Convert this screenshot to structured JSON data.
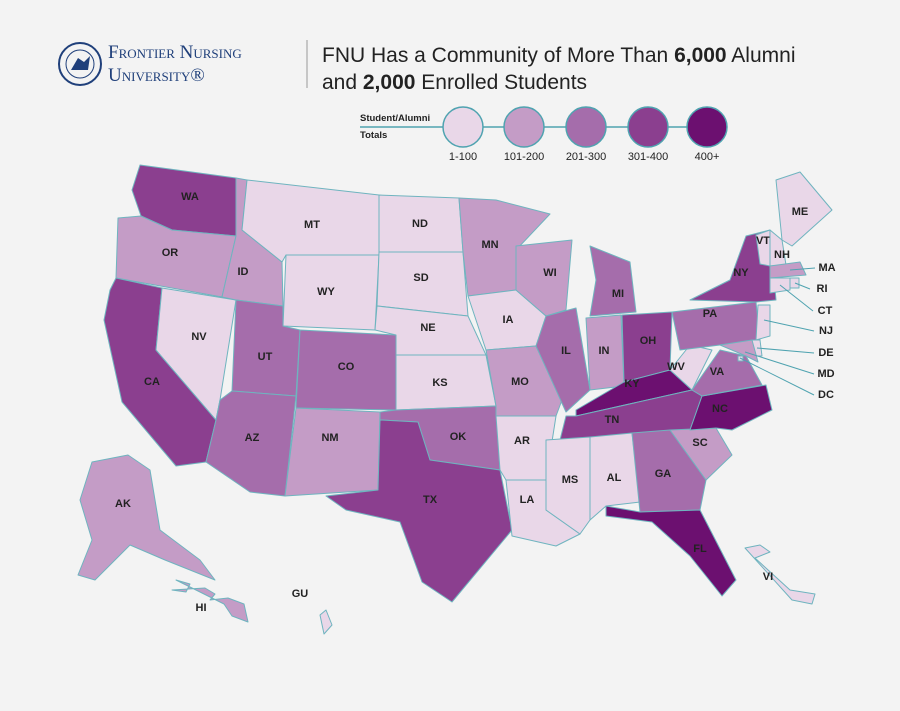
{
  "logo": {
    "line1": "Frontier Nursing",
    "line2": "University®"
  },
  "title": {
    "lines": [
      [
        {
          "text": "FNU Has a Community of More Than ",
          "bold": false
        },
        {
          "text": "6,000",
          "bold": true
        },
        {
          "text": " Alumni",
          "bold": false
        }
      ],
      [
        {
          "text": "and ",
          "bold": false
        },
        {
          "text": "2,000",
          "bold": true
        },
        {
          "text": " Enrolled Students",
          "bold": false
        }
      ]
    ]
  },
  "legend": {
    "title": [
      "Student/Alumni",
      "Totals"
    ],
    "bins": [
      {
        "label": "1-100",
        "color": "#e9d7e8"
      },
      {
        "label": "101-200",
        "color": "#c49cc6"
      },
      {
        "label": "201-300",
        "color": "#a56dab"
      },
      {
        "label": "301-400",
        "color": "#8b3f8f"
      },
      {
        "label": "400+",
        "color": "#6c1070"
      }
    ]
  },
  "states": [
    {
      "label": "WA",
      "color": "#8b3f8f"
    },
    {
      "label": "OR",
      "color": "#c49cc6"
    },
    {
      "label": "CA",
      "color": "#8b3f8f"
    },
    {
      "label": "NV",
      "color": "#e9d7e8"
    },
    {
      "label": "ID",
      "color": "#c49cc6"
    },
    {
      "label": "MT",
      "color": "#e9d7e8"
    },
    {
      "label": "WY",
      "color": "#e9d7e8"
    },
    {
      "label": "UT",
      "color": "#a56dab"
    },
    {
      "label": "AZ",
      "color": "#a56dab"
    },
    {
      "label": "CO",
      "color": "#a56dab"
    },
    {
      "label": "NM",
      "color": "#c49cc6"
    },
    {
      "label": "ND",
      "color": "#e9d7e8"
    },
    {
      "label": "SD",
      "color": "#e9d7e8"
    },
    {
      "label": "NE",
      "color": "#e9d7e8"
    },
    {
      "label": "KS",
      "color": "#e9d7e8"
    },
    {
      "label": "OK",
      "color": "#a56dab"
    },
    {
      "label": "TX",
      "color": "#8b3f8f"
    },
    {
      "label": "MN",
      "color": "#c49cc6"
    },
    {
      "label": "IA",
      "color": "#e9d7e8"
    },
    {
      "label": "MO",
      "color": "#c49cc6"
    },
    {
      "label": "AR",
      "color": "#e9d7e8"
    },
    {
      "label": "LA",
      "color": "#e9d7e8"
    },
    {
      "label": "WI",
      "color": "#c49cc6"
    },
    {
      "label": "IL",
      "color": "#a56dab"
    },
    {
      "label": "MI",
      "color": "#a56dab"
    },
    {
      "label": "IN",
      "color": "#c49cc6"
    },
    {
      "label": "OH",
      "color": "#8b3f8f"
    },
    {
      "label": "KY",
      "color": "#6c1070"
    },
    {
      "label": "TN",
      "color": "#8b3f8f"
    },
    {
      "label": "MS",
      "color": "#e9d7e8"
    },
    {
      "label": "AL",
      "color": "#e9d7e8"
    },
    {
      "label": "GA",
      "color": "#a56dab"
    },
    {
      "label": "FL",
      "color": "#6c1070"
    },
    {
      "label": "SC",
      "color": "#c49cc6"
    },
    {
      "label": "NC",
      "color": "#6c1070"
    },
    {
      "label": "VA",
      "color": "#a56dab"
    },
    {
      "label": "WV",
      "color": "#e9d7e8"
    },
    {
      "label": "PA",
      "color": "#a56dab"
    },
    {
      "label": "NY",
      "color": "#8b3f8f"
    },
    {
      "label": "ME",
      "color": "#e9d7e8"
    },
    {
      "label": "VT",
      "color": "#e9d7e8"
    },
    {
      "label": "NH",
      "color": "#e9d7e8"
    },
    {
      "label": "MA",
      "color": "#c49cc6"
    },
    {
      "label": "RI",
      "color": "#e9d7e8"
    },
    {
      "label": "CT",
      "color": "#e9d7e8"
    },
    {
      "label": "NJ",
      "color": "#e9d7e8"
    },
    {
      "label": "DE",
      "color": "#e9d7e8"
    },
    {
      "label": "MD",
      "color": "#c49cc6"
    },
    {
      "label": "DC",
      "color": "#e9d7e8"
    },
    {
      "label": "AK",
      "color": "#c49cc6"
    },
    {
      "label": "HI",
      "color": "#c49cc6"
    },
    {
      "label": "GU",
      "color": "#e9d7e8"
    },
    {
      "label": "VI",
      "color": "#e9d7e8"
    }
  ]
}
